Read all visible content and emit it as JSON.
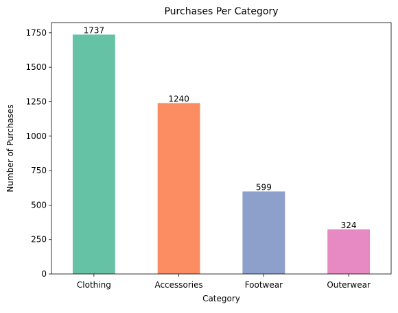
{
  "chart_data": {
    "type": "bar",
    "title": "Purchases Per Category",
    "xlabel": "Category",
    "ylabel": "Number of Purchases",
    "categories": [
      "Clothing",
      "Accessories",
      "Footwear",
      "Outerwear"
    ],
    "values": [
      1737,
      1240,
      599,
      324
    ],
    "data_labels": [
      "1737",
      "1240",
      "599",
      "324"
    ],
    "colors": [
      "#66c2a5",
      "#fc8d62",
      "#8da0cb",
      "#e78ac3"
    ],
    "ylim": [
      0,
      1823.85
    ],
    "yticks": [
      0,
      250,
      500,
      750,
      1000,
      1250,
      1500,
      1750
    ],
    "ytick_labels": [
      "0",
      "250",
      "500",
      "750",
      "1000",
      "1250",
      "1500",
      "1750"
    ],
    "grid": false,
    "legend": "none"
  }
}
